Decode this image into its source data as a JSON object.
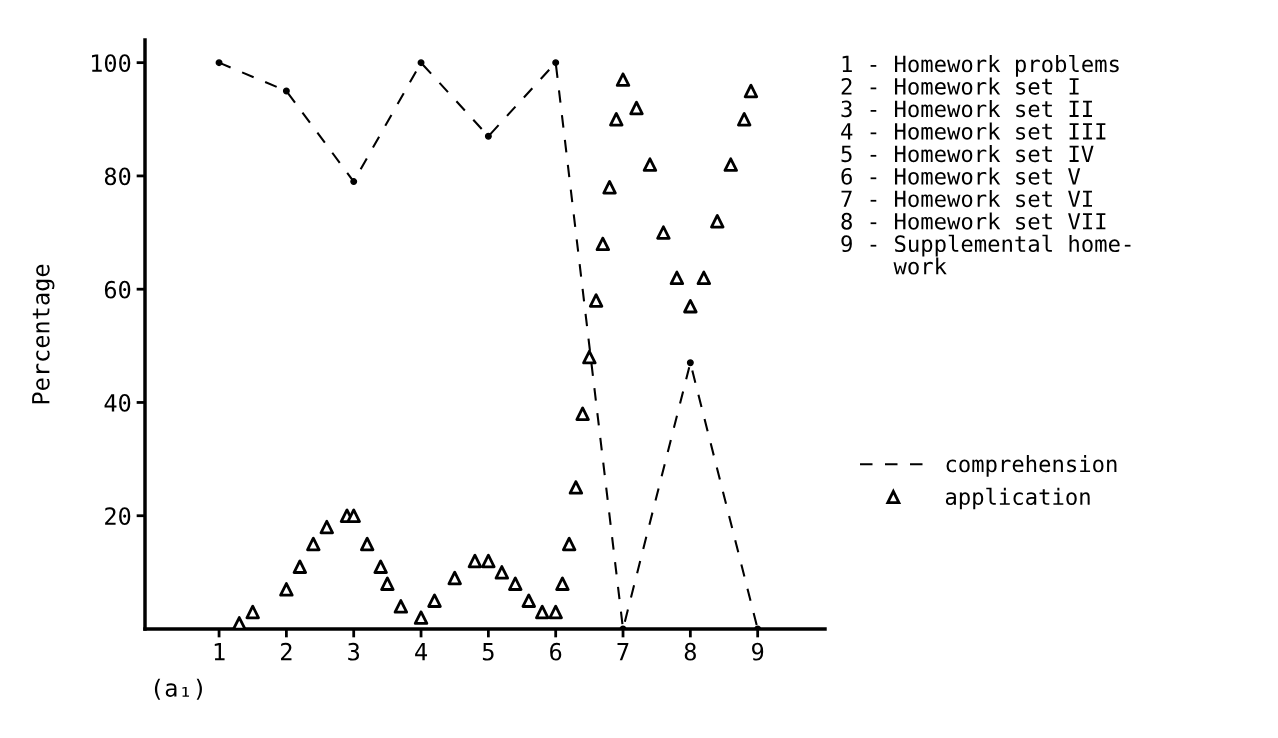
{
  "chart_data": {
    "type": "line",
    "ylabel": "Percentage",
    "xlim": [
      -0.1,
      10
    ],
    "ylim": [
      0,
      104
    ],
    "xticks": [
      1,
      2,
      3,
      4,
      5,
      6,
      7,
      8,
      9
    ],
    "yticks": [
      20,
      40,
      60,
      80,
      100
    ],
    "grid": false,
    "legend": "right",
    "series": [
      {
        "name": "comprehension",
        "color": "#000000",
        "line_style": "dashed",
        "marker": "circle",
        "x": [
          1,
          2,
          3,
          4,
          5,
          6,
          7,
          8,
          9
        ],
        "values": [
          100,
          95,
          79,
          100,
          87,
          100,
          0,
          47,
          0
        ]
      },
      {
        "name": "application",
        "type": "scatter",
        "color": "#000000",
        "marker": "triangle",
        "x": [
          1.3,
          1.5,
          2.0,
          2.2,
          2.4,
          2.6,
          2.9,
          3.0,
          3.2,
          3.4,
          3.5,
          3.7,
          4.0,
          4.2,
          4.5,
          4.8,
          5.0,
          5.2,
          5.4,
          5.6,
          5.8,
          6.0,
          6.1,
          6.2,
          6.3,
          6.4,
          6.5,
          6.6,
          6.7,
          6.8,
          6.9,
          7.0,
          7.2,
          7.4,
          7.6,
          7.8,
          8.0,
          8.2,
          8.4,
          8.6,
          8.8,
          8.9
        ],
        "values": [
          1,
          3,
          7,
          11,
          15,
          18,
          20,
          20,
          15,
          11,
          8,
          4,
          2,
          5,
          9,
          12,
          12,
          10,
          8,
          5,
          3,
          3,
          8,
          15,
          25,
          38,
          48,
          58,
          68,
          78,
          90,
          97,
          92,
          82,
          70,
          62,
          57,
          62,
          72,
          82,
          90,
          95
        ]
      }
    ],
    "annotations": [
      "(a₁)",
      "1 - Homework problems",
      "2 - Homework set I",
      "3 - Homework set II",
      "4 - Homework set III",
      "5 - Homework set IV",
      "6 - Homework set V",
      "7 - Homework set VI",
      "8 - Homework set VII",
      "9 - Supplemental home-\n    work"
    ]
  }
}
